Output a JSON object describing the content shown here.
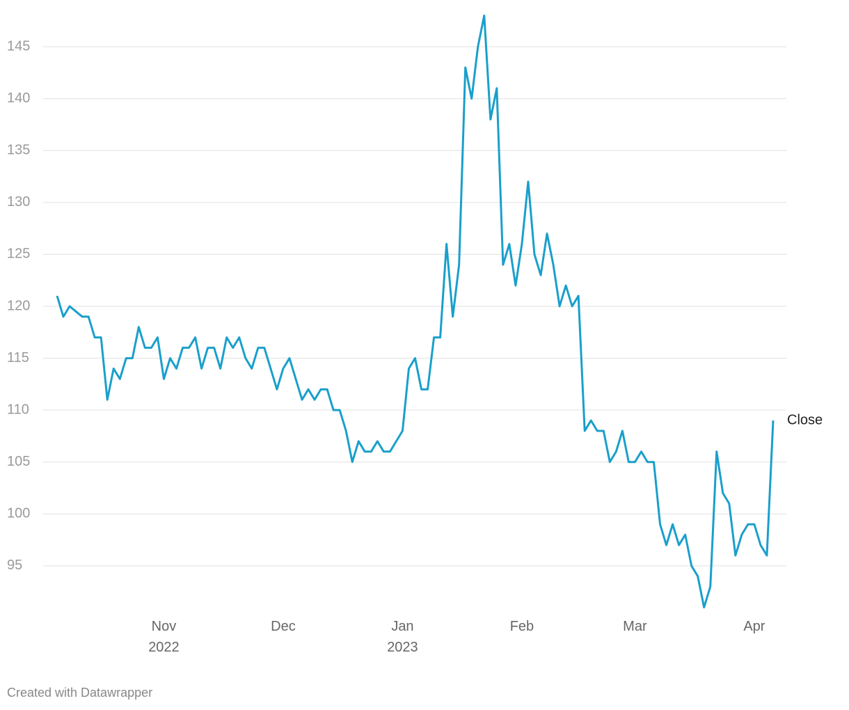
{
  "chart_data": {
    "type": "line",
    "categories": [
      null,
      null,
      null,
      null,
      null,
      null,
      null,
      null,
      null,
      null,
      null,
      null,
      null,
      null,
      null,
      null,
      null,
      "Nov 2022",
      null,
      null,
      null,
      null,
      null,
      null,
      null,
      null,
      null,
      null,
      null,
      null,
      null,
      null,
      null,
      null,
      null,
      null,
      "Dec",
      null,
      null,
      null,
      null,
      null,
      null,
      null,
      null,
      null,
      null,
      null,
      null,
      null,
      null,
      null,
      null,
      null,
      null,
      "Jan 2023",
      null,
      null,
      null,
      null,
      null,
      null,
      null,
      null,
      null,
      null,
      null,
      null,
      null,
      null,
      null,
      null,
      null,
      null,
      "Feb",
      null,
      null,
      null,
      null,
      null,
      null,
      null,
      null,
      null,
      null,
      null,
      null,
      null,
      null,
      null,
      null,
      null,
      "Mar",
      null,
      null,
      null,
      null,
      null,
      null,
      null,
      null,
      null,
      null,
      null,
      null,
      null,
      null,
      null,
      null,
      null,
      null,
      "Apr",
      null,
      null,
      null
    ],
    "series": [
      {
        "name": "Close",
        "color": "#1a9fcb",
        "values": [
          121,
          119,
          120,
          119.5,
          119,
          119,
          117,
          117,
          111,
          114,
          113,
          115,
          115,
          118,
          116,
          116,
          117,
          113,
          115,
          114,
          116,
          116,
          117,
          114,
          116,
          116,
          114,
          117,
          116,
          117,
          115,
          114,
          116,
          116,
          114,
          112,
          114,
          115,
          113,
          111,
          112,
          111,
          112,
          112,
          110,
          110,
          108,
          105,
          107,
          106,
          106,
          107,
          106,
          106,
          107,
          108,
          114,
          115,
          112,
          112,
          117,
          117,
          126,
          119,
          124,
          143,
          140,
          145,
          148,
          138,
          141,
          124,
          126,
          122,
          126,
          132,
          125,
          123,
          127,
          124,
          120,
          122,
          120,
          121,
          108,
          109,
          108,
          108,
          105,
          106,
          108,
          105,
          105,
          106,
          105,
          105,
          99,
          97,
          99,
          97,
          98,
          95,
          94,
          91,
          93,
          106,
          102,
          101,
          96,
          98,
          99,
          99,
          97,
          96,
          109
        ]
      }
    ],
    "ylim": [
      90.5,
      149.5
    ],
    "yticks": [
      95,
      100,
      105,
      110,
      115,
      120,
      125,
      130,
      135,
      140,
      145
    ],
    "grid": true,
    "footer": "Created with Datawrapper"
  }
}
